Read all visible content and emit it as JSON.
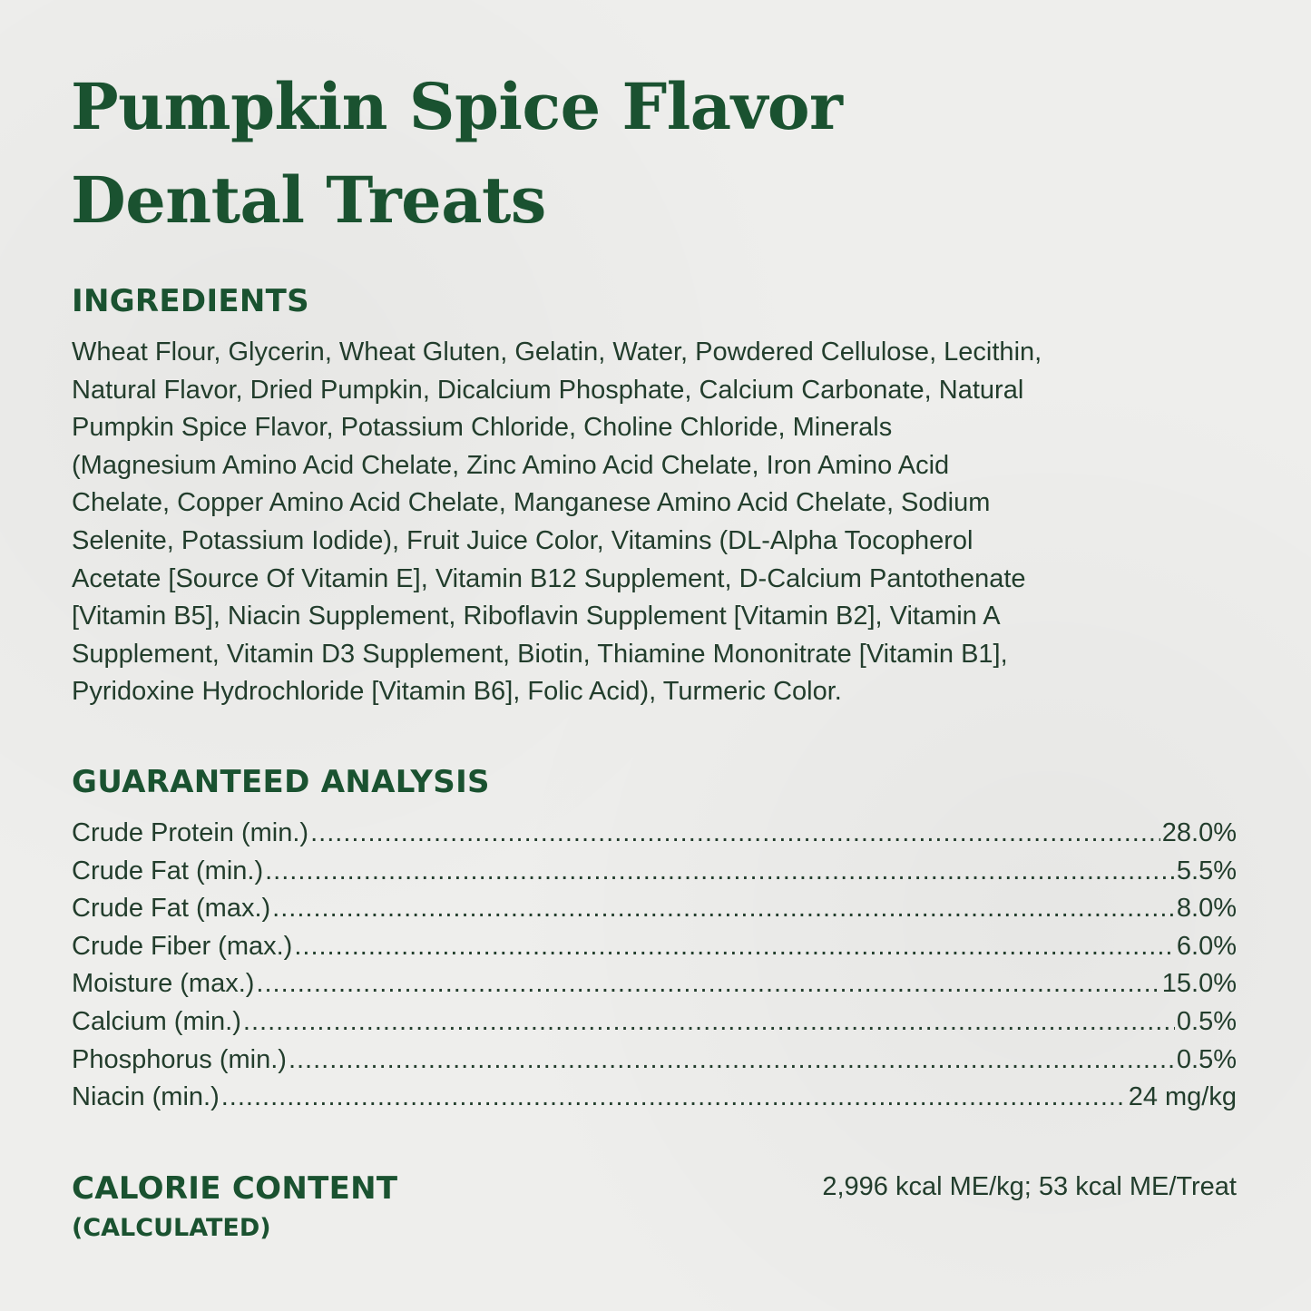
{
  "title_lines": [
    "Pumpkin Spice Flavor",
    "Dental Treats"
  ],
  "ingredients": {
    "heading": "INGREDIENTS",
    "lines": [
      "Wheat Flour, Glycerin, Wheat Gluten, Gelatin, Water, Powdered Cellulose, Lecithin,",
      "Natural Flavor, Dried Pumpkin, Dicalcium Phosphate, Calcium Carbonate, Natural",
      "Pumpkin Spice Flavor, Potassium Chloride, Choline Chloride, Minerals",
      "(Magnesium Amino Acid Chelate, Zinc Amino Acid Chelate, Iron Amino Acid",
      "Chelate, Copper Amino Acid Chelate, Manganese Amino Acid Chelate, Sodium",
      "Selenite, Potassium Iodide), Fruit Juice Color, Vitamins (DL-Alpha Tocopherol",
      "Acetate [Source Of Vitamin E], Vitamin B12 Supplement, D-Calcium Pantothenate",
      "[Vitamin B5], Niacin Supplement, Riboflavin Supplement [Vitamin B2], Vitamin A",
      "Supplement, Vitamin D3 Supplement, Biotin, Thiamine Mononitrate [Vitamin B1],",
      "Pyridoxine Hydrochloride [Vitamin B6], Folic Acid), Turmeric Color."
    ]
  },
  "analysis": {
    "heading": "GUARANTEED ANALYSIS",
    "rows": [
      {
        "label": "Crude Protein (min.)",
        "value": "28.0%"
      },
      {
        "label": "Crude Fat (min.)",
        "value": "5.5%"
      },
      {
        "label": "Crude Fat (max.)",
        "value": "8.0%"
      },
      {
        "label": "Crude Fiber (max.)",
        "value": "6.0%"
      },
      {
        "label": "Moisture (max.)",
        "value": "15.0%"
      },
      {
        "label": "Calcium (min.)",
        "value": "0.5%"
      },
      {
        "label": "Phosphorus (min.)",
        "value": "0.5%"
      },
      {
        "label": "Niacin (min.)",
        "value": "24 mg/kg"
      }
    ]
  },
  "calorie": {
    "heading": "CALORIE CONTENT",
    "subheading": "(CALCULATED)",
    "value": "2,996 kcal ME/kg; 53 kcal ME/Treat"
  },
  "colors": {
    "heading_green": "#1a5230",
    "body_text": "#223d2c",
    "background": "#eeeeec"
  }
}
